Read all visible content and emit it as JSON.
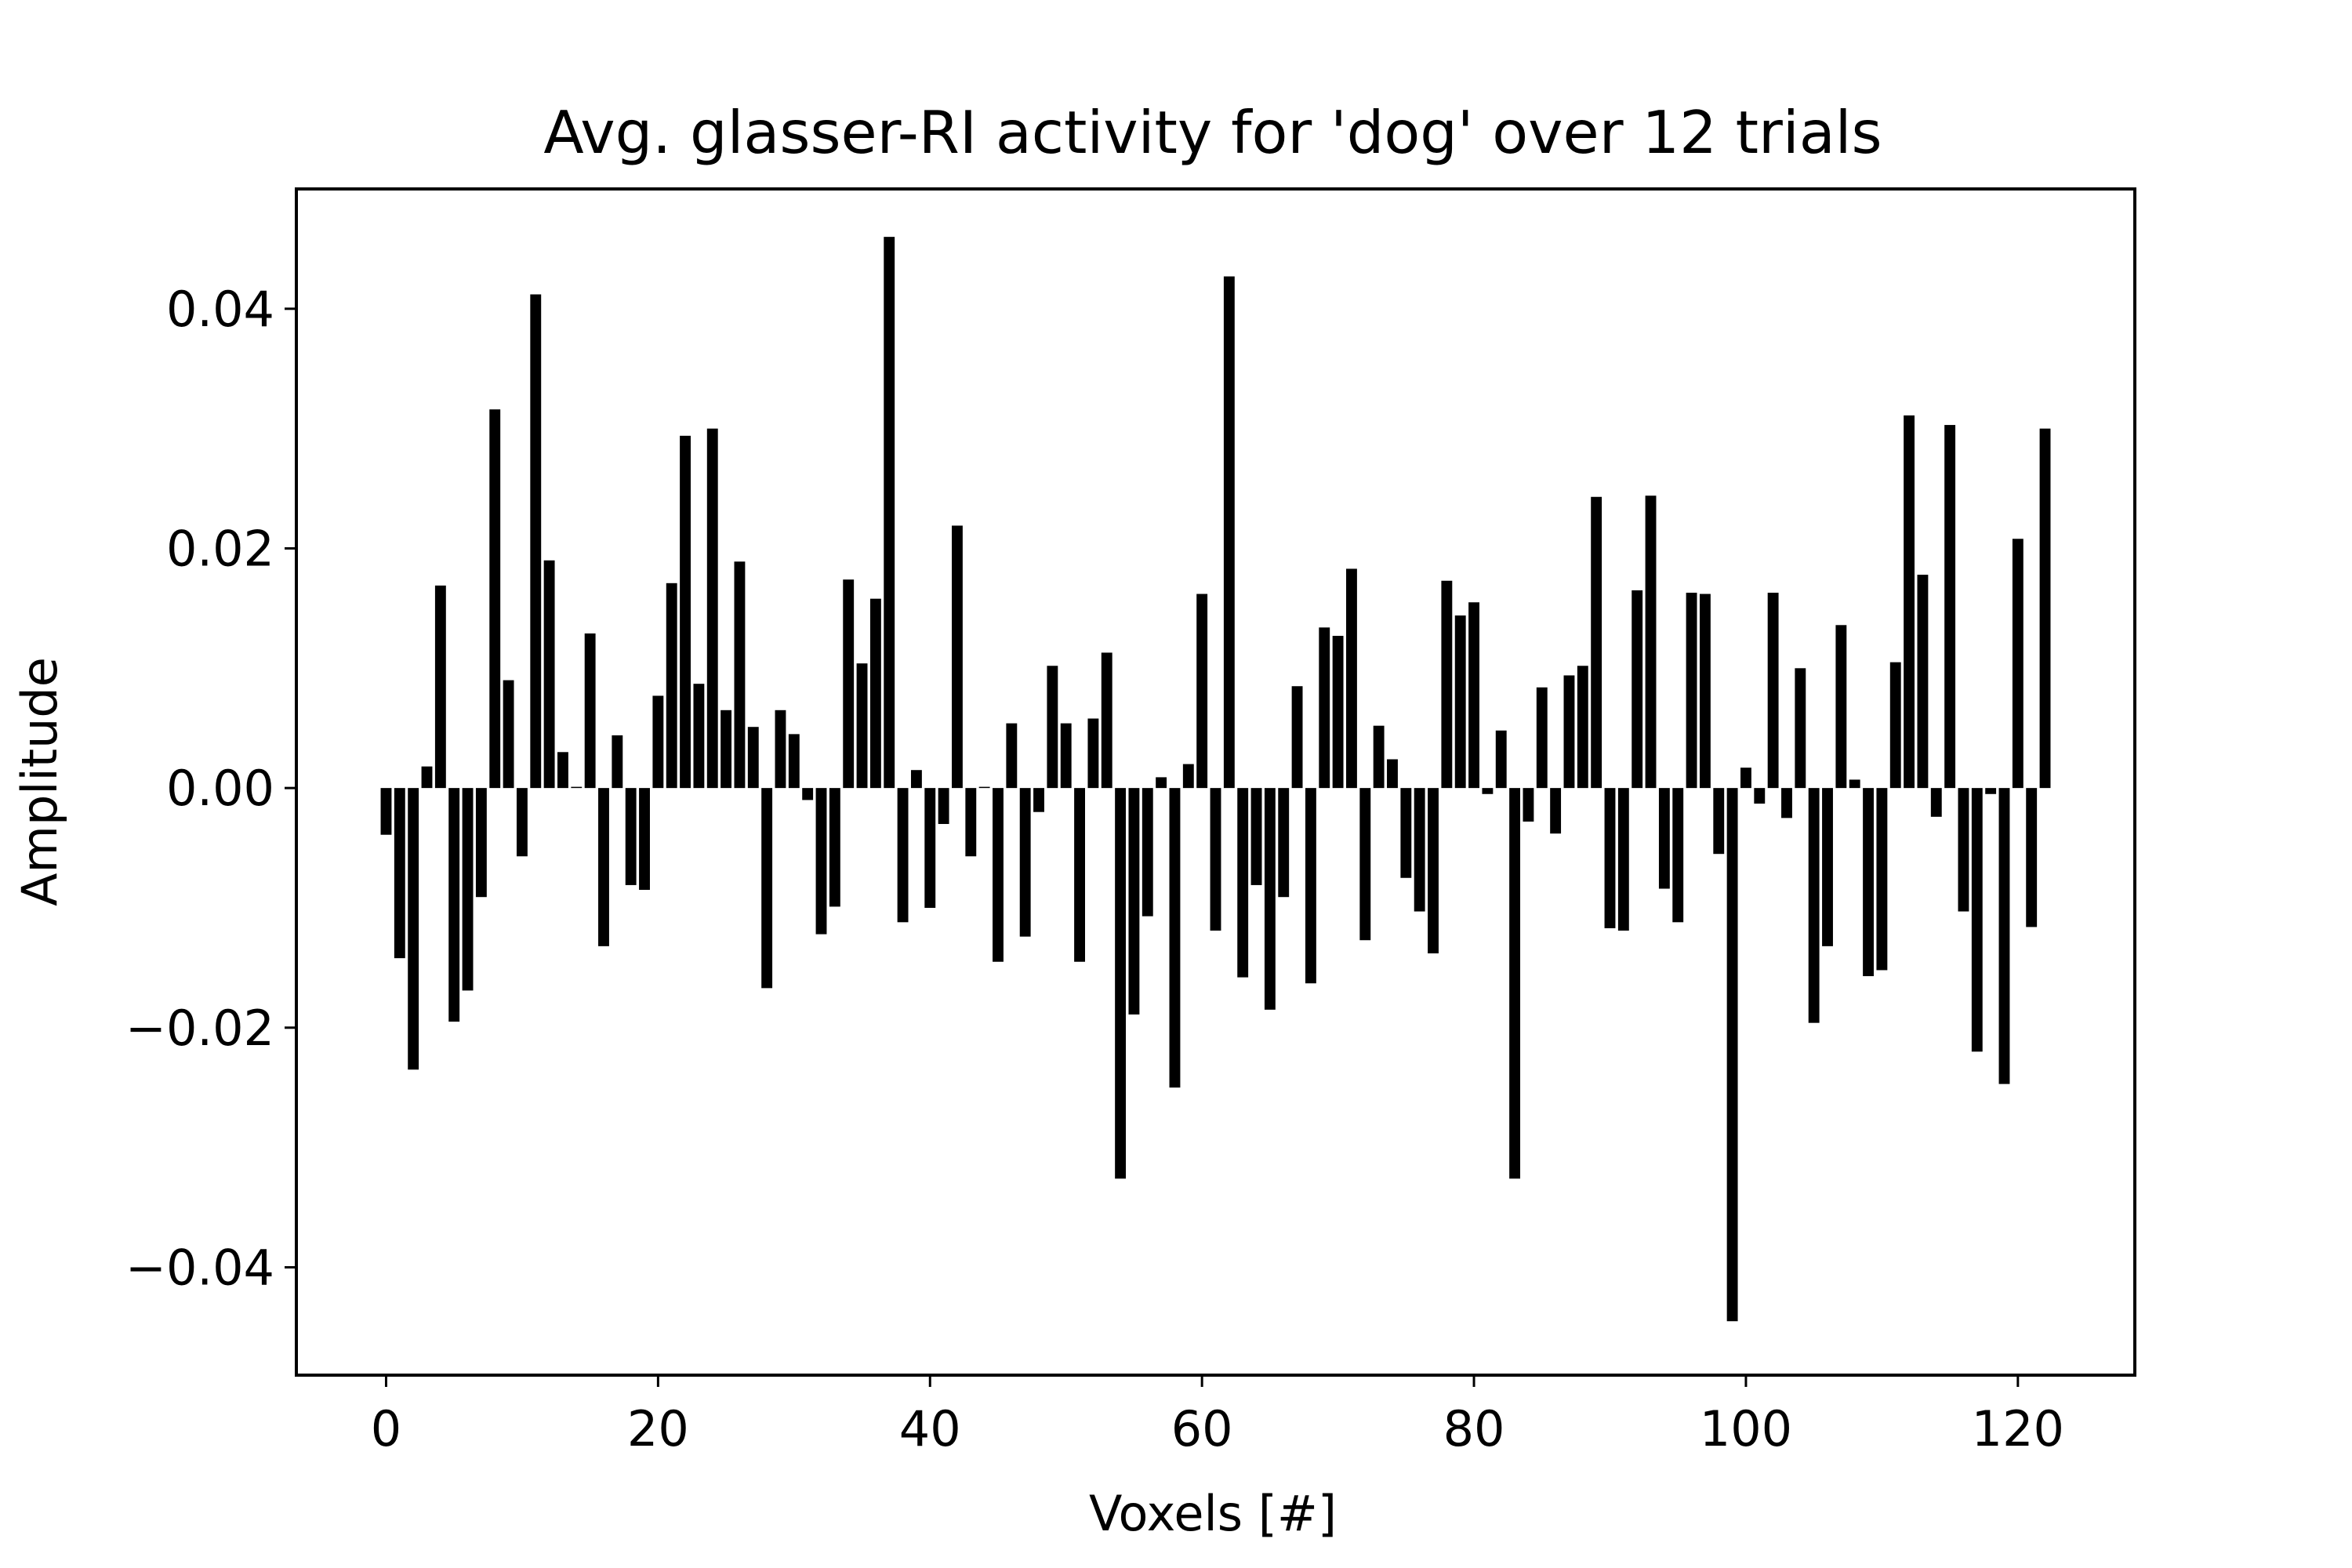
{
  "chart_data": {
    "type": "bar",
    "title": "Avg. glasser-RI activity for 'dog' over 12 trials",
    "xlabel": "Voxels [#]",
    "ylabel": "Amplitude",
    "xlim": [
      -6.6,
      128.6
    ],
    "ylim": [
      -0.049,
      0.05
    ],
    "grid": false,
    "legend": "none",
    "bar_color": "#000000",
    "xticks": [
      {
        "value": 0,
        "label": "0"
      },
      {
        "value": 20,
        "label": "20"
      },
      {
        "value": 40,
        "label": "40"
      },
      {
        "value": 60,
        "label": "60"
      },
      {
        "value": 80,
        "label": "80"
      },
      {
        "value": 100,
        "label": "100"
      },
      {
        "value": 120,
        "label": "120"
      }
    ],
    "yticks": [
      {
        "value": -0.04,
        "label": "−0.04"
      },
      {
        "value": -0.02,
        "label": "−0.02"
      },
      {
        "value": 0.0,
        "label": "0.00"
      },
      {
        "value": 0.02,
        "label": "0.02"
      },
      {
        "value": 0.04,
        "label": "0.04"
      }
    ],
    "x_start": 0,
    "values": [
      -0.0039,
      -0.0142,
      -0.0235,
      0.0018,
      0.0169,
      -0.0195,
      -0.0169,
      -0.0091,
      0.0316,
      0.009,
      -0.0057,
      0.0412,
      0.019,
      0.003,
      0.0001,
      0.0129,
      -0.0132,
      0.0044,
      -0.0081,
      -0.0085,
      0.0077,
      0.0171,
      0.0294,
      0.0087,
      0.03,
      0.0065,
      0.0189,
      0.0051,
      -0.0167,
      0.0065,
      0.0045,
      -0.001,
      -0.0122,
      -0.0099,
      0.0174,
      0.0104,
      0.0158,
      0.046,
      -0.0112,
      0.0015,
      -0.01,
      -0.003,
      0.0219,
      -0.0057,
      0.0001,
      -0.0145,
      0.0054,
      -0.0124,
      -0.002,
      0.0102,
      0.0054,
      -0.0145,
      0.0058,
      0.0113,
      -0.0326,
      -0.0189,
      -0.0107,
      0.0009,
      -0.025,
      0.002,
      0.0162,
      -0.0119,
      0.0427,
      -0.0158,
      -0.0081,
      -0.0185,
      -0.0091,
      0.0085,
      -0.0163,
      0.0134,
      0.0127,
      0.0183,
      -0.0127,
      0.0052,
      0.0024,
      -0.0075,
      -0.0103,
      -0.0138,
      0.0173,
      0.0144,
      0.0155,
      -0.0005,
      0.0048,
      -0.0326,
      -0.0028,
      0.0084,
      -0.0038,
      0.0094,
      0.0102,
      0.0243,
      -0.0117,
      -0.0119,
      0.0165,
      0.0244,
      -0.0084,
      -0.0112,
      0.0163,
      0.0162,
      -0.0055,
      -0.0445,
      0.0017,
      -0.0013,
      0.0163,
      -0.0025,
      0.01,
      -0.0196,
      -0.0132,
      0.0136,
      0.0007,
      -0.0157,
      -0.0152,
      0.0105,
      0.0311,
      0.0178,
      -0.0024,
      0.0303,
      -0.0103,
      -0.022,
      -0.0005,
      -0.0247,
      0.0208,
      -0.0116,
      0.03
    ]
  }
}
